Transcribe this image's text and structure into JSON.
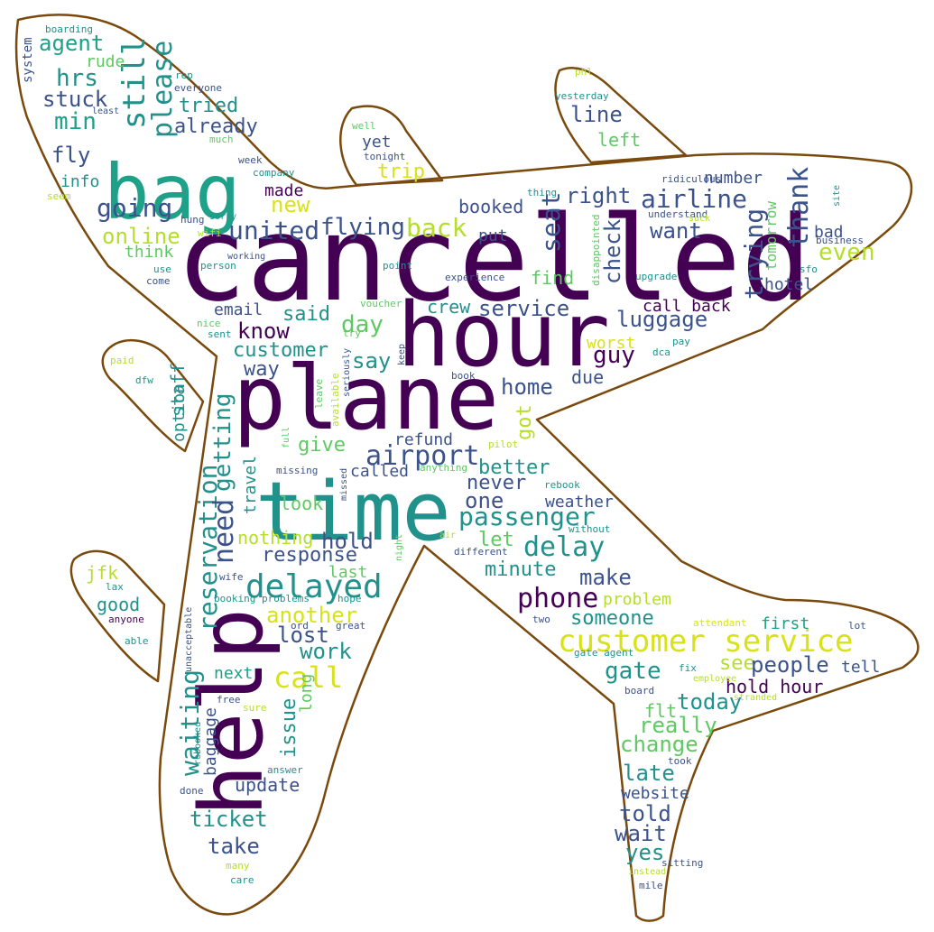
{
  "colors": {
    "outline": "#7a4a0d",
    "background": "#ffffff",
    "palette": [
      "#440154",
      "#3b528b",
      "#21918c",
      "#1fa088",
      "#5ec962",
      "#b5de2b",
      "#d8e219"
    ]
  },
  "words": [
    {
      "t": "cancelled",
      "c": 0
    },
    {
      "t": "hour",
      "c": 0
    },
    {
      "t": "plane",
      "c": 0
    },
    {
      "t": "time",
      "c": 2
    },
    {
      "t": "help",
      "c": 0
    },
    {
      "t": "bag",
      "c": 3
    },
    {
      "t": "customer service",
      "c": 6
    },
    {
      "t": "delayed",
      "c": 2
    },
    {
      "t": "still",
      "c": 2
    },
    {
      "t": "please",
      "c": 2
    },
    {
      "t": "reservation",
      "c": 2
    },
    {
      "t": "need",
      "c": 1
    },
    {
      "t": "getting",
      "c": 2
    },
    {
      "t": "waiting",
      "c": 2
    },
    {
      "t": "call",
      "c": 6
    },
    {
      "t": "airport",
      "c": 1
    },
    {
      "t": "passenger",
      "c": 2
    },
    {
      "t": "delay",
      "c": 2
    },
    {
      "t": "phone",
      "c": 0
    },
    {
      "t": "flying",
      "c": 1
    },
    {
      "t": "united",
      "c": 1
    },
    {
      "t": "airline",
      "c": 1
    },
    {
      "t": "thank",
      "c": 1
    },
    {
      "t": "trying",
      "c": 1
    },
    {
      "t": "seat",
      "c": 1
    },
    {
      "t": "check",
      "c": 1
    },
    {
      "t": "back",
      "c": 5
    },
    {
      "t": "going",
      "c": 1
    },
    {
      "t": "online",
      "c": 5
    },
    {
      "t": "agent",
      "c": 3
    },
    {
      "t": "hrs",
      "c": 2
    },
    {
      "t": "min",
      "c": 3
    },
    {
      "t": "stuck",
      "c": 1
    },
    {
      "t": "fly",
      "c": 1
    },
    {
      "t": "tried",
      "c": 2
    },
    {
      "t": "already",
      "c": 1
    },
    {
      "t": "rude",
      "c": 4
    },
    {
      "t": "info",
      "c": 2
    },
    {
      "t": "think",
      "c": 4
    },
    {
      "t": "made",
      "c": 0
    },
    {
      "t": "new",
      "c": 6
    },
    {
      "t": "trip",
      "c": 6
    },
    {
      "t": "yet",
      "c": 1
    },
    {
      "t": "line",
      "c": 1
    },
    {
      "t": "left",
      "c": 4
    },
    {
      "t": "right",
      "c": 1
    },
    {
      "t": "want",
      "c": 1
    },
    {
      "t": "even",
      "c": 5
    },
    {
      "t": "bad",
      "c": 1
    },
    {
      "t": "booked",
      "c": 1
    },
    {
      "t": "put",
      "c": 1
    },
    {
      "t": "find",
      "c": 4
    },
    {
      "t": "hotel",
      "c": 1
    },
    {
      "t": "number",
      "c": 1
    },
    {
      "t": "tomorrow",
      "c": 4
    },
    {
      "t": "luggage",
      "c": 1
    },
    {
      "t": "call back",
      "c": 0
    },
    {
      "t": "service",
      "c": 1
    },
    {
      "t": "crew",
      "c": 2
    },
    {
      "t": "said",
      "c": 2
    },
    {
      "t": "email",
      "c": 1
    },
    {
      "t": "know",
      "c": 0
    },
    {
      "t": "day",
      "c": 4
    },
    {
      "t": "customer",
      "c": 2
    },
    {
      "t": "way",
      "c": 1
    },
    {
      "t": "say",
      "c": 2
    },
    {
      "t": "worst",
      "c": 6
    },
    {
      "t": "guy",
      "c": 0
    },
    {
      "t": "home",
      "c": 1
    },
    {
      "t": "due",
      "c": 1
    },
    {
      "t": "got",
      "c": 5
    },
    {
      "t": "refund",
      "c": 1
    },
    {
      "t": "give",
      "c": 4
    },
    {
      "t": "called",
      "c": 1
    },
    {
      "t": "better",
      "c": 2
    },
    {
      "t": "never",
      "c": 1
    },
    {
      "t": "one",
      "c": 1
    },
    {
      "t": "weather",
      "c": 1
    },
    {
      "t": "look",
      "c": 4
    },
    {
      "t": "travel",
      "c": 2
    },
    {
      "t": "hold",
      "c": 1
    },
    {
      "t": "nothing",
      "c": 5
    },
    {
      "t": "response",
      "c": 1
    },
    {
      "t": "let",
      "c": 4
    },
    {
      "t": "minute",
      "c": 2
    },
    {
      "t": "last",
      "c": 4
    },
    {
      "t": "make",
      "c": 1
    },
    {
      "t": "problem",
      "c": 5
    },
    {
      "t": "someone",
      "c": 2
    },
    {
      "t": "another",
      "c": 6
    },
    {
      "t": "lost",
      "c": 1
    },
    {
      "t": "work",
      "c": 2
    },
    {
      "t": "first",
      "c": 3
    },
    {
      "t": "gate",
      "c": 2
    },
    {
      "t": "see",
      "c": 5
    },
    {
      "t": "people",
      "c": 1
    },
    {
      "t": "tell",
      "c": 1
    },
    {
      "t": "hold hour",
      "c": 0
    },
    {
      "t": "today",
      "c": 2
    },
    {
      "t": "flt",
      "c": 4
    },
    {
      "t": "really",
      "c": 4
    },
    {
      "t": "change",
      "c": 4
    },
    {
      "t": "late",
      "c": 2
    },
    {
      "t": "website",
      "c": 1
    },
    {
      "t": "told",
      "c": 1
    },
    {
      "t": "wait",
      "c": 1
    },
    {
      "t": "yes",
      "c": 2
    },
    {
      "t": "next",
      "c": 3
    },
    {
      "t": "issue",
      "c": 2
    },
    {
      "t": "long",
      "c": 4
    },
    {
      "t": "baggage",
      "c": 1
    },
    {
      "t": "update",
      "c": 1
    },
    {
      "t": "ticket",
      "c": 2
    },
    {
      "t": "take",
      "c": 1
    },
    {
      "t": "jfk",
      "c": 5
    },
    {
      "t": "good",
      "c": 2
    },
    {
      "t": "staff",
      "c": 2
    },
    {
      "t": "option",
      "c": 2
    },
    {
      "t": "system",
      "c": 1
    },
    {
      "t": "boarding",
      "c": 2
    },
    {
      "t": "rep",
      "c": 2
    },
    {
      "t": "everyone",
      "c": 1
    },
    {
      "t": "least",
      "c": 1
    },
    {
      "t": "well",
      "c": 4
    },
    {
      "t": "much",
      "c": 4
    },
    {
      "t": "tonight",
      "c": 1
    },
    {
      "t": "week",
      "c": 1
    },
    {
      "t": "company",
      "c": 2
    },
    {
      "t": "seem",
      "c": 5
    },
    {
      "t": "sorry",
      "c": 2
    },
    {
      "t": "hung",
      "c": 1
    },
    {
      "t": "wifi",
      "c": 5
    },
    {
      "t": "working",
      "c": 1
    },
    {
      "t": "person",
      "c": 2
    },
    {
      "t": "use",
      "c": 2
    },
    {
      "t": "come",
      "c": 1
    },
    {
      "t": "point",
      "c": 2
    },
    {
      "t": "experience",
      "c": 1
    },
    {
      "t": "voucher",
      "c": 4
    },
    {
      "t": "nice",
      "c": 4
    },
    {
      "t": "sent",
      "c": 2
    },
    {
      "t": "try",
      "c": 4
    },
    {
      "t": "keep",
      "c": 1
    },
    {
      "t": "phl",
      "c": 5
    },
    {
      "t": "yesterday",
      "c": 2
    },
    {
      "t": "ridiculous",
      "c": 1
    },
    {
      "t": "thing",
      "c": 2
    },
    {
      "t": "site",
      "c": 2
    },
    {
      "t": "understand",
      "c": 1
    },
    {
      "t": "suck",
      "c": 5
    },
    {
      "t": "business",
      "c": 1
    },
    {
      "t": "sfo",
      "c": 2
    },
    {
      "t": "upgrade",
      "c": 2
    },
    {
      "t": "disappointed",
      "c": 4
    },
    {
      "t": "pay",
      "c": 2
    },
    {
      "t": "dca",
      "c": 2
    },
    {
      "t": "book",
      "c": 1
    },
    {
      "t": "paid",
      "c": 5
    },
    {
      "t": "dfw",
      "c": 2
    },
    {
      "t": "available",
      "c": 5
    },
    {
      "t": "seriously",
      "c": 1
    },
    {
      "t": "leave",
      "c": 4
    },
    {
      "t": "full",
      "c": 4
    },
    {
      "t": "missing",
      "c": 1
    },
    {
      "t": "missed",
      "c": 1
    },
    {
      "t": "anything",
      "c": 4
    },
    {
      "t": "pilot",
      "c": 5
    },
    {
      "t": "rebook",
      "c": 2
    },
    {
      "t": "without",
      "c": 2
    },
    {
      "t": "air",
      "c": 5
    },
    {
      "t": "night",
      "c": 4
    },
    {
      "t": "different",
      "c": 1
    },
    {
      "t": "wife",
      "c": 1
    },
    {
      "t": "booking problems",
      "c": 2
    },
    {
      "t": "hope",
      "c": 2
    },
    {
      "t": "ord",
      "c": 1
    },
    {
      "t": "great",
      "c": 1
    },
    {
      "t": "two",
      "c": 1
    },
    {
      "t": "lax",
      "c": 2
    },
    {
      "t": "anyone",
      "c": 0
    },
    {
      "t": "able",
      "c": 2
    },
    {
      "t": "unacceptable",
      "c": 1
    },
    {
      "t": "attendant",
      "c": 6
    },
    {
      "t": "lot",
      "c": 1
    },
    {
      "t": "gate agent",
      "c": 2
    },
    {
      "t": "fix",
      "c": 2
    },
    {
      "t": "employee",
      "c": 5
    },
    {
      "t": "board",
      "c": 1
    },
    {
      "t": "stranded",
      "c": 5
    },
    {
      "t": "free",
      "c": 1
    },
    {
      "t": "sure",
      "c": 5
    },
    {
      "t": "rebooked",
      "c": 2
    },
    {
      "t": "took",
      "c": 1
    },
    {
      "t": "answer",
      "c": 2
    },
    {
      "t": "done",
      "c": 1
    },
    {
      "t": "many",
      "c": 5
    },
    {
      "t": "care",
      "c": 2
    },
    {
      "t": "sitting",
      "c": 1
    },
    {
      "t": "instead",
      "c": 5
    },
    {
      "t": "mile",
      "c": 1
    }
  ]
}
